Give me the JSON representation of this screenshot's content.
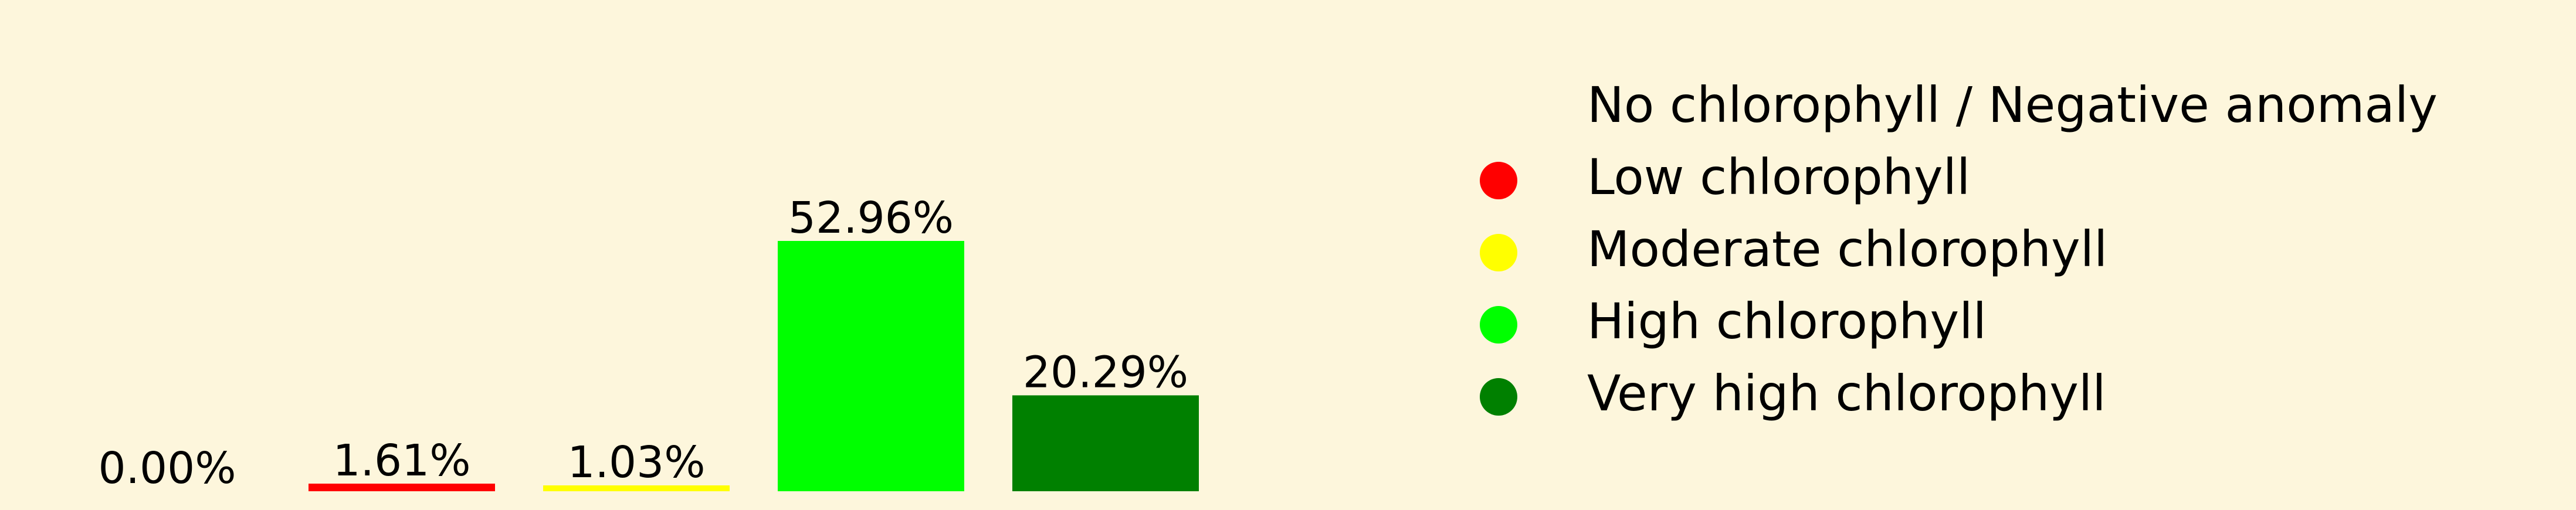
{
  "background_color": "#fdf6dc",
  "chart_data": {
    "type": "bar",
    "title": "",
    "xlabel": "",
    "ylabel": "",
    "grid": false,
    "axes_visible": false,
    "legend_position": "right",
    "categories": [
      "No chlorophyll / Negative anomaly",
      "Low chlorophyll",
      "Moderate chlorophyll",
      "High chlorophyll",
      "Very high chlorophyll"
    ],
    "values": [
      0.0,
      1.61,
      1.03,
      52.96,
      20.29
    ],
    "value_labels": [
      "0.00%",
      "1.61%",
      "1.03%",
      "52.96%",
      "20.29%"
    ],
    "colors": [
      "#fdf6dc",
      "#ff0000",
      "#ffff00",
      "#00ff00",
      "#008000"
    ],
    "ylim": [
      0,
      53
    ]
  }
}
